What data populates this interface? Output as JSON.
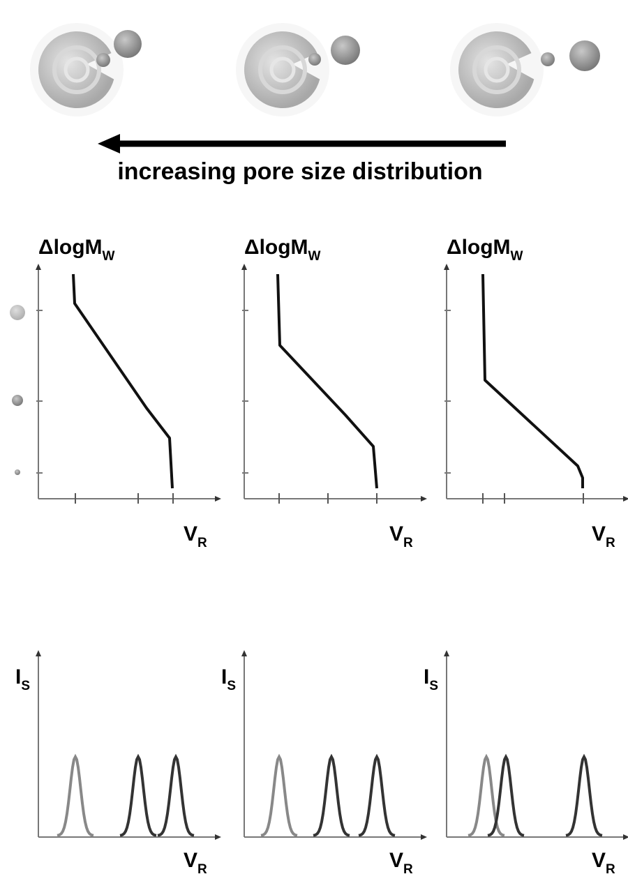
{
  "caption": "increasing pore size distribution",
  "calibration_plots": [
    {
      "y_label": {
        "text": "ΔlogM",
        "subscript": "W"
      },
      "x_label": {
        "text": "V",
        "subscript": "R"
      }
    },
    {
      "y_label": {
        "text": "ΔlogM",
        "subscript": "W"
      },
      "x_label": {
        "text": "V",
        "subscript": "R"
      }
    },
    {
      "y_label": {
        "text": "ΔlogM",
        "subscript": "W"
      },
      "x_label": {
        "text": "V",
        "subscript": "R"
      }
    }
  ],
  "chromatograms": [
    {
      "y_label": {
        "text": "I",
        "subscript": "S"
      },
      "x_label": {
        "text": "V",
        "subscript": "R"
      }
    },
    {
      "y_label": {
        "text": "I",
        "subscript": "S"
      },
      "x_label": {
        "text": "V",
        "subscript": "R"
      }
    },
    {
      "y_label": {
        "text": "I",
        "subscript": "S"
      },
      "x_label": {
        "text": "V",
        "subscript": "R"
      }
    }
  ]
}
